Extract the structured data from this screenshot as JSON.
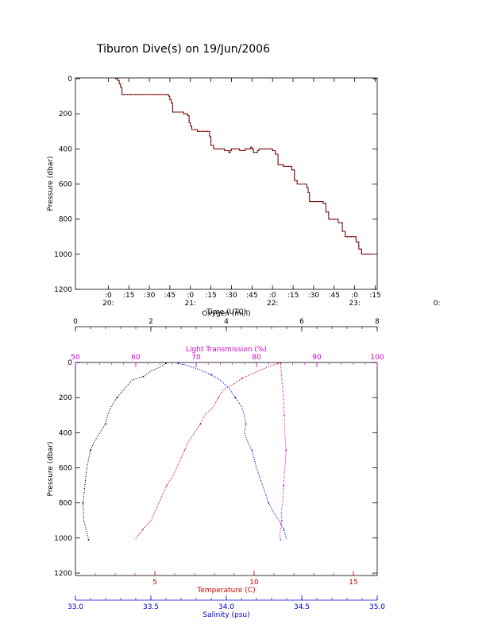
{
  "chart_data": [
    {
      "type": "line",
      "title": "Tiburon Dive(s) on 19/Jun/2006",
      "xlabel": "Time (UTC)",
      "ylabel": "Pressure (dbar)",
      "y_reversed": true,
      "ylim": [
        0,
        1200
      ],
      "yticks": [
        0,
        200,
        400,
        600,
        800,
        1000,
        1200
      ],
      "y_tick_labels": [
        "0",
        "200",
        "400",
        "600",
        "800",
        "1000",
        "1200"
      ],
      "x_unit": "minutes since 20:00 UTC",
      "xlim": [
        -15,
        195
      ],
      "xticks": [
        0,
        15,
        30,
        45,
        60,
        75,
        90,
        105,
        120,
        135,
        150,
        165,
        180,
        195
      ],
      "x_tick_labels": [
        ":0",
        ":15",
        ":30",
        ":45",
        ":0",
        ":15",
        ":30",
        ":45",
        ":0",
        ":15",
        ":30",
        ":45",
        ":0",
        ":15"
      ],
      "hour_labels": [
        {
          "at": 0,
          "text": "20:"
        },
        {
          "at": 60,
          "text": "21:"
        },
        {
          "at": 120,
          "text": "22:"
        },
        {
          "at": 180,
          "text": "23:"
        },
        {
          "at": 240,
          "text": "0:"
        }
      ],
      "series": [
        {
          "color": "#cc0000",
          "x": [
            5,
            7,
            8,
            9,
            10,
            15,
            20,
            30,
            40,
            44,
            45,
            46,
            47,
            50,
            55,
            58,
            59,
            60,
            61,
            65,
            70,
            73,
            74,
            75,
            77,
            80,
            85,
            88,
            89,
            90,
            92,
            96,
            100,
            103,
            104,
            105,
            106,
            109,
            110,
            111,
            114,
            118,
            120,
            122,
            124,
            128,
            131,
            133,
            134,
            136,
            138,
            141,
            143,
            145,
            146,
            147,
            152,
            156,
            157,
            159,
            161,
            165,
            167,
            168,
            171,
            173,
            175,
            179,
            181,
            183,
            185,
            187,
            189,
            193
          ],
          "y": [
            0,
            10,
            30,
            50,
            90,
            90,
            90,
            90,
            90,
            100,
            120,
            140,
            190,
            190,
            200,
            210,
            250,
            270,
            290,
            300,
            300,
            300,
            330,
            380,
            400,
            400,
            410,
            420,
            410,
            400,
            400,
            410,
            400,
            400,
            390,
            400,
            420,
            410,
            400,
            400,
            400,
            400,
            410,
            430,
            490,
            500,
            500,
            500,
            520,
            580,
            600,
            600,
            600,
            620,
            650,
            700,
            700,
            700,
            710,
            760,
            800,
            800,
            800,
            820,
            870,
            900,
            900,
            900,
            930,
            970,
            1000,
            1000,
            1000,
            1000
          ]
        },
        {
          "color": "#000000",
          "style": "dotted",
          "x": [
            5,
            7,
            8,
            9,
            10,
            15,
            20,
            30,
            40,
            44,
            45,
            46,
            47,
            50,
            55,
            58,
            59,
            60,
            61,
            65,
            70,
            73,
            74,
            75,
            77,
            80,
            85,
            88,
            89,
            90,
            92,
            96,
            100,
            103,
            104,
            105,
            106,
            109,
            110,
            111,
            114,
            118,
            120,
            122,
            124,
            128,
            131,
            133,
            134,
            136,
            138,
            141,
            143,
            145,
            146,
            147,
            152,
            156,
            157,
            159,
            161,
            165,
            167,
            168,
            171,
            173,
            175,
            179,
            181,
            183,
            185,
            187,
            189,
            193
          ],
          "y": [
            0,
            10,
            30,
            50,
            90,
            90,
            90,
            90,
            90,
            100,
            120,
            140,
            190,
            190,
            200,
            210,
            250,
            270,
            290,
            300,
            300,
            300,
            330,
            380,
            400,
            400,
            410,
            420,
            410,
            400,
            400,
            410,
            400,
            400,
            390,
            400,
            420,
            410,
            400,
            400,
            400,
            400,
            410,
            430,
            490,
            500,
            500,
            500,
            520,
            580,
            600,
            600,
            600,
            620,
            650,
            700,
            700,
            700,
            710,
            760,
            800,
            800,
            800,
            820,
            870,
            900,
            900,
            900,
            930,
            970,
            1000,
            1000,
            1000,
            1000
          ]
        }
      ]
    },
    {
      "type": "line",
      "ylabel": "Pressure (dbar)",
      "y_reversed": true,
      "ylim": [
        0,
        1200
      ],
      "yticks": [
        0,
        200,
        400,
        600,
        800,
        1000,
        1200
      ],
      "y_tick_labels": [
        "0",
        "200",
        "400",
        "600",
        "800",
        "1000",
        "1200"
      ],
      "x_axes": [
        {
          "position": "bottom",
          "label": "Temperature (C)",
          "color": "#cc0000",
          "range": [
            1,
            16.2
          ],
          "ticks": [
            5,
            10,
            15
          ],
          "tick_labels": [
            "5",
            "10",
            "15"
          ]
        },
        {
          "position": "bottom-2",
          "label": "Salinity (psu)",
          "color": "#0000cc",
          "range": [
            33.0,
            35.0
          ],
          "ticks": [
            33.0,
            33.5,
            34.0,
            34.5,
            35.0
          ],
          "tick_labels": [
            "33.0",
            "33.5",
            "34.0",
            "34.5",
            "35.0"
          ]
        },
        {
          "position": "top-2",
          "label": "Oxygen (ml/l)",
          "color": "#000000",
          "range": [
            0,
            8
          ],
          "ticks": [
            0,
            2,
            4,
            6,
            8
          ],
          "tick_labels": [
            "0",
            "2",
            "4",
            "6",
            "8"
          ]
        },
        {
          "position": "top",
          "label": "Light Transmission (%)",
          "color": "#cc00cc",
          "range": [
            50,
            100
          ],
          "ticks": [
            50,
            60,
            70,
            80,
            90,
            100
          ],
          "tick_labels": [
            "50",
            "60",
            "70",
            "80",
            "90",
            "100"
          ]
        }
      ],
      "series": [
        {
          "color": "#cc0000",
          "axis": "Temperature (C)",
          "x": [
            11.2,
            10.6,
            10.0,
            9.4,
            9.0,
            8.5,
            8.2,
            7.9,
            7.5,
            7.3,
            7.0,
            6.7,
            6.5,
            6.1,
            5.9,
            5.6,
            5.2,
            4.8,
            4.4,
            4.2,
            4.0
          ],
          "y": [
            5,
            30,
            60,
            90,
            120,
            150,
            200,
            260,
            300,
            350,
            400,
            450,
            500,
            600,
            650,
            700,
            800,
            900,
            950,
            980,
            1010
          ]
        },
        {
          "color": "#0000cc",
          "axis": "Salinity (psu)",
          "x": [
            33.68,
            33.75,
            33.82,
            33.9,
            33.96,
            34.02,
            34.06,
            34.1,
            34.12,
            34.13,
            34.12,
            34.14,
            34.17,
            34.2,
            34.24,
            34.28,
            34.31,
            34.35,
            34.38,
            34.4
          ],
          "y": [
            5,
            20,
            40,
            70,
            100,
            150,
            200,
            250,
            300,
            350,
            400,
            450,
            500,
            600,
            700,
            800,
            850,
            900,
            950,
            1010
          ]
        },
        {
          "color": "#000000",
          "axis": "Oxygen (ml/l)",
          "x": [
            2.4,
            2.3,
            2.0,
            1.8,
            1.5,
            1.3,
            1.1,
            0.95,
            0.85,
            0.8,
            0.65,
            0.5,
            0.4,
            0.3,
            0.25,
            0.2,
            0.22,
            0.28,
            0.35
          ],
          "y": [
            5,
            20,
            50,
            80,
            100,
            150,
            200,
            250,
            300,
            350,
            400,
            450,
            500,
            600,
            700,
            800,
            900,
            950,
            1010
          ]
        },
        {
          "color": "#cc00cc",
          "axis": "Light Transmission (%)",
          "x": [
            84.0,
            84.2,
            84.5,
            84.6,
            84.7,
            84.8,
            84.9,
            84.8,
            84.7,
            84.5,
            84.3,
            84.1,
            84.2,
            84.0,
            83.8,
            84.0
          ],
          "y": [
            5,
            100,
            200,
            300,
            400,
            450,
            500,
            550,
            600,
            700,
            800,
            850,
            900,
            950,
            980,
            1010
          ]
        }
      ]
    }
  ]
}
